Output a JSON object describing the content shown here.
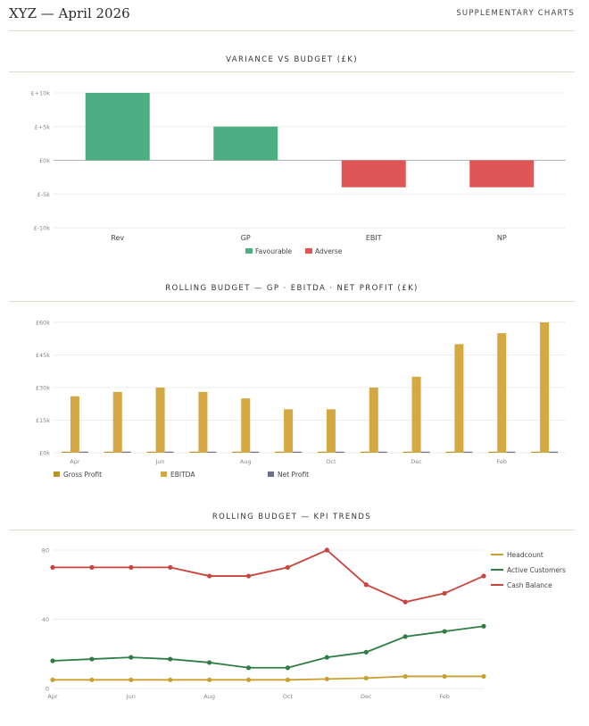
{
  "header": {
    "title": "XYZ — April 2026",
    "subtitle": "SUPPLEMENTARY CHARTS"
  },
  "colors": {
    "favourable": "#4caf82",
    "adverse": "#e05555",
    "gross_profit": "#b8952a",
    "ebitda": "#d4a843",
    "net_profit": "#6b7090",
    "headcount": "#c9a030",
    "active_customers": "#2e7d45",
    "cash_balance": "#c8443c"
  },
  "chart_data": [
    {
      "type": "bar",
      "title": "VARIANCE VS BUDGET (£K)",
      "categories": [
        "Rev",
        "GP",
        "EBIT",
        "NP"
      ],
      "values": [
        10,
        5,
        -4,
        -4
      ],
      "ylim": [
        -10,
        10
      ],
      "yticks": [
        10,
        5,
        0,
        -5,
        -10
      ],
      "ytick_labels": [
        "£+10k",
        "£+5k",
        "£0k",
        "£-5k",
        "£-10k"
      ],
      "legend": [
        "Favourable",
        "Adverse"
      ],
      "legend_position": "bottom",
      "grid": true
    },
    {
      "type": "bar",
      "title": "ROLLING BUDGET — GP · EBITDA · NET PROFIT (£K)",
      "categories": [
        "Apr",
        "May",
        "Jun",
        "Jul",
        "Aug",
        "Sep",
        "Oct",
        "Nov",
        "Dec",
        "Jan",
        "Feb",
        "Mar"
      ],
      "xtick_labels": [
        "Apr",
        "",
        "Jun",
        "",
        "Aug",
        "",
        "Oct",
        "",
        "Dec",
        "",
        "Feb",
        ""
      ],
      "series": [
        {
          "name": "Gross Profit",
          "values": [
            0,
            0,
            0,
            0,
            0,
            0,
            0,
            0,
            0,
            0,
            0,
            0
          ]
        },
        {
          "name": "EBITDA",
          "values": [
            26,
            28,
            30,
            28,
            25,
            20,
            20,
            30,
            35,
            50,
            55,
            60
          ]
        },
        {
          "name": "Net Profit",
          "values": [
            0,
            0,
            0,
            0,
            0,
            0,
            0,
            0,
            0,
            0,
            0,
            0
          ]
        }
      ],
      "ylim": [
        0,
        60
      ],
      "yticks": [
        0,
        15,
        30,
        45,
        60
      ],
      "ytick_labels": [
        "£0k",
        "£15k",
        "£30k",
        "£45k",
        "£60k"
      ],
      "legend_position": "bottom",
      "grid": true
    },
    {
      "type": "line",
      "title": "ROLLING BUDGET — KPI TRENDS",
      "categories": [
        "Apr",
        "May",
        "Jun",
        "Jul",
        "Aug",
        "Sep",
        "Oct",
        "Nov",
        "Dec",
        "Jan",
        "Feb",
        "Mar"
      ],
      "xtick_labels": [
        "Apr",
        "",
        "Jun",
        "",
        "Aug",
        "",
        "Oct",
        "",
        "Dec",
        "",
        "Feb",
        ""
      ],
      "series": [
        {
          "name": "Headcount",
          "values": [
            5,
            5,
            5,
            5,
            5,
            5,
            5,
            5.5,
            6,
            7,
            7,
            7
          ]
        },
        {
          "name": "Active Customers",
          "values": [
            16,
            17,
            18,
            17,
            15,
            12,
            12,
            18,
            21,
            30,
            33,
            36
          ]
        },
        {
          "name": "Cash Balance",
          "values": [
            70,
            70,
            70,
            70,
            65,
            65,
            70,
            80,
            60,
            50,
            55,
            65
          ]
        }
      ],
      "ylim": [
        0,
        80
      ],
      "yticks": [
        0,
        40,
        80
      ],
      "ytick_labels": [
        "0",
        "40",
        "80"
      ],
      "legend_position": "right",
      "grid": true
    }
  ]
}
